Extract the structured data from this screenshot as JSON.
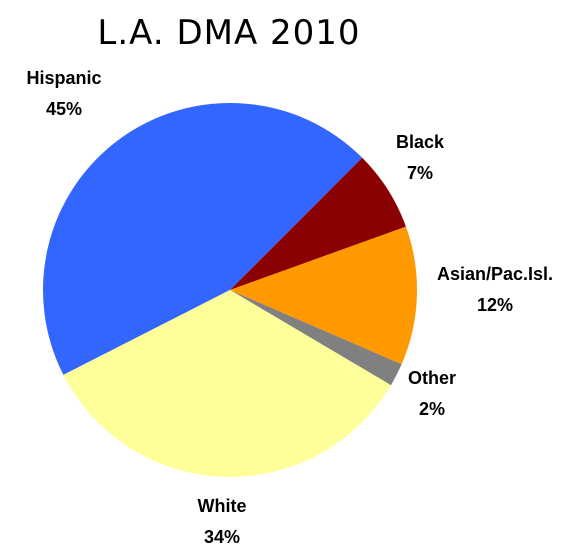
{
  "chart_data": {
    "type": "pie",
    "title": "L.A. DMA 2010",
    "slices": [
      {
        "label": "Hispanic",
        "value": 45,
        "value_label": "45%",
        "color": "#3366ff"
      },
      {
        "label": "Black",
        "value": 7,
        "value_label": "7%",
        "color": "#8b0000"
      },
      {
        "label": "Asian/Pac.Isl.",
        "value": 12,
        "value_label": "12%",
        "color": "#ff9900"
      },
      {
        "label": "Other",
        "value": 2,
        "value_label": "2%",
        "color": "#808080"
      },
      {
        "label": "White",
        "value": 34,
        "value_label": "34%",
        "color": "#ffff99"
      }
    ],
    "legend": "none (labels next to slices)"
  }
}
